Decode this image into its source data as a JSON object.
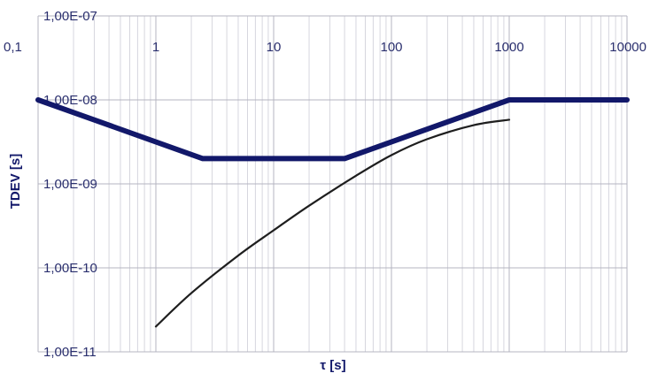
{
  "chart_data": {
    "type": "line",
    "xscale": "log",
    "yscale": "log",
    "xlim": [
      0.1,
      10000
    ],
    "ylim": [
      1e-11,
      1e-07
    ],
    "xlabel": "τ [s]",
    "ylabel": "TDEV [s]",
    "x_tick_labels": [
      "0,1",
      "1",
      "10",
      "100",
      "1000",
      "10000"
    ],
    "y_tick_labels": [
      "1,00E-07",
      "1,00E-08",
      "1,00E-09",
      "1,00E-10",
      "1,00E-11"
    ],
    "grid": true,
    "series": [
      {
        "color": "#12186a",
        "width": "thick",
        "x": [
          0.1,
          2.5,
          40,
          1000,
          10000
        ],
        "y": [
          1e-08,
          2e-09,
          2e-09,
          1e-08,
          1e-08
        ]
      },
      {
        "color": "#1e1e1e",
        "width": "thin",
        "x": [
          1,
          2,
          5,
          10,
          20,
          50,
          100,
          200,
          500,
          1000
        ],
        "y": [
          2e-11,
          5e-11,
          1.4e-10,
          2.8e-10,
          5.5e-10,
          1.25e-09,
          2.2e-09,
          3.4e-09,
          5e-09,
          5.8e-09
        ]
      }
    ]
  }
}
